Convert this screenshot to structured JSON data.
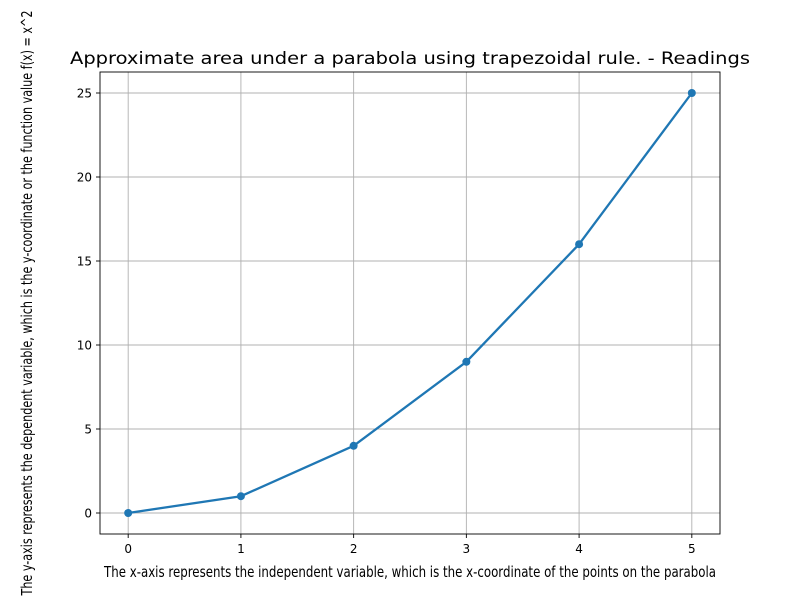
{
  "chart_data": {
    "type": "line",
    "title": "Approximate area under a parabola using trapezoidal rule. - Readings",
    "xlabel": "The x-axis represents the independent variable, which is the x-coordinate of the points on the parabola",
    "ylabel": "The y-axis represents the dependent variable, which is the y-coordinate or the function value f(x) = x^2",
    "x": [
      0,
      1,
      2,
      3,
      4,
      5
    ],
    "series": [
      {
        "values": [
          0,
          1,
          4,
          9,
          16,
          25
        ],
        "color": "#1f77b4",
        "marker": "circle"
      }
    ],
    "xlim": [
      -0.25,
      5.25
    ],
    "ylim": [
      -1.25,
      26.25
    ],
    "xticks": [
      0,
      1,
      2,
      3,
      4,
      5
    ],
    "yticks": [
      0,
      5,
      10,
      15,
      20,
      25
    ],
    "xtick_labels": [
      "0",
      "1",
      "2",
      "3",
      "4",
      "5"
    ],
    "ytick_labels": [
      "0",
      "5",
      "10",
      "15",
      "20",
      "25"
    ],
    "grid": true,
    "legend": "none"
  }
}
